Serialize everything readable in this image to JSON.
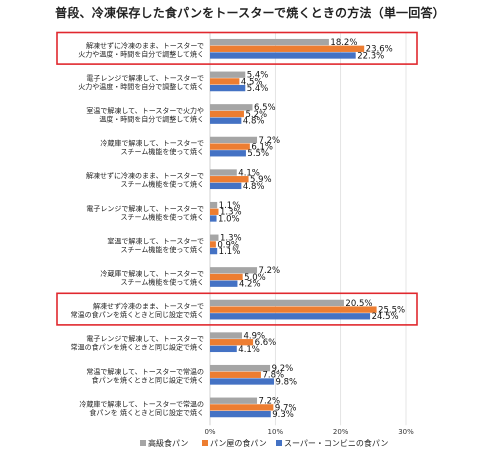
{
  "chart_data": {
    "type": "bar",
    "orientation": "horizontal",
    "title": "普段、冷凍保存した食パンをトースターで焼くときの方法（単一回答）",
    "categories": [
      [
        "解凍せずに冷凍のまま、トースターで",
        "火力や温度・時間を自分で調整して焼く"
      ],
      [
        "電子レンジで解凍して、トースターで",
        "火力や温度・時間を自分で調整して焼く"
      ],
      [
        "室温で解凍して、トースターで火力や",
        "温度・時間を自分で調整して焼く"
      ],
      [
        "冷蔵庫で解凍して、トースターで",
        "スチーム機能を使って焼く"
      ],
      [
        "解凍せずに冷凍のまま、トースターで",
        "スチーム機能を使って焼く"
      ],
      [
        "電子レンジで解凍して、トースターで",
        "スチーム機能を使って焼く"
      ],
      [
        "室温で解凍して、トースターで",
        "スチーム機能を使って焼く"
      ],
      [
        "冷蔵庫で解凍して、トースターで",
        "スチーム機能を使って焼く"
      ],
      [
        "解凍せず冷凍のまま、トースターで",
        "常温の食パンを焼くときと同じ設定で焼く"
      ],
      [
        "電子レンジで解凍して、トースターで",
        "常温の食パンを焼くときと同じ設定で焼く"
      ],
      [
        "常温で解凍して、トースターで常温の",
        "食パンを焼くときと同じ設定で焼く"
      ],
      [
        "冷蔵庫で解凍して、トースターで常温の",
        "食パンを  焼くときと同じ設定で焼く"
      ]
    ],
    "series": [
      {
        "name": "高級食パン",
        "color": "#a5a5a5",
        "values": [
          18.2,
          5.4,
          6.5,
          7.2,
          4.1,
          1.1,
          1.3,
          7.2,
          20.5,
          4.9,
          9.2,
          7.2
        ]
      },
      {
        "name": "パン屋の食パン",
        "color": "#ed7d31",
        "values": [
          23.6,
          4.5,
          5.2,
          6.1,
          5.9,
          1.3,
          0.9,
          5.0,
          25.5,
          6.6,
          7.8,
          9.7
        ]
      },
      {
        "name": "スーパー・コンビニの食パン",
        "color": "#4472c4",
        "values": [
          22.3,
          5.4,
          4.8,
          5.5,
          4.8,
          1.0,
          1.1,
          4.2,
          24.5,
          4.1,
          9.8,
          9.3
        ]
      }
    ],
    "value_suffix": "%",
    "xlim": [
      0,
      30
    ],
    "xticks": [
      "0%",
      "10%",
      "20%",
      "30%"
    ],
    "highlighted_categories": [
      0,
      8
    ],
    "highlight_color": "#e0282e",
    "legend_position": "bottom"
  }
}
